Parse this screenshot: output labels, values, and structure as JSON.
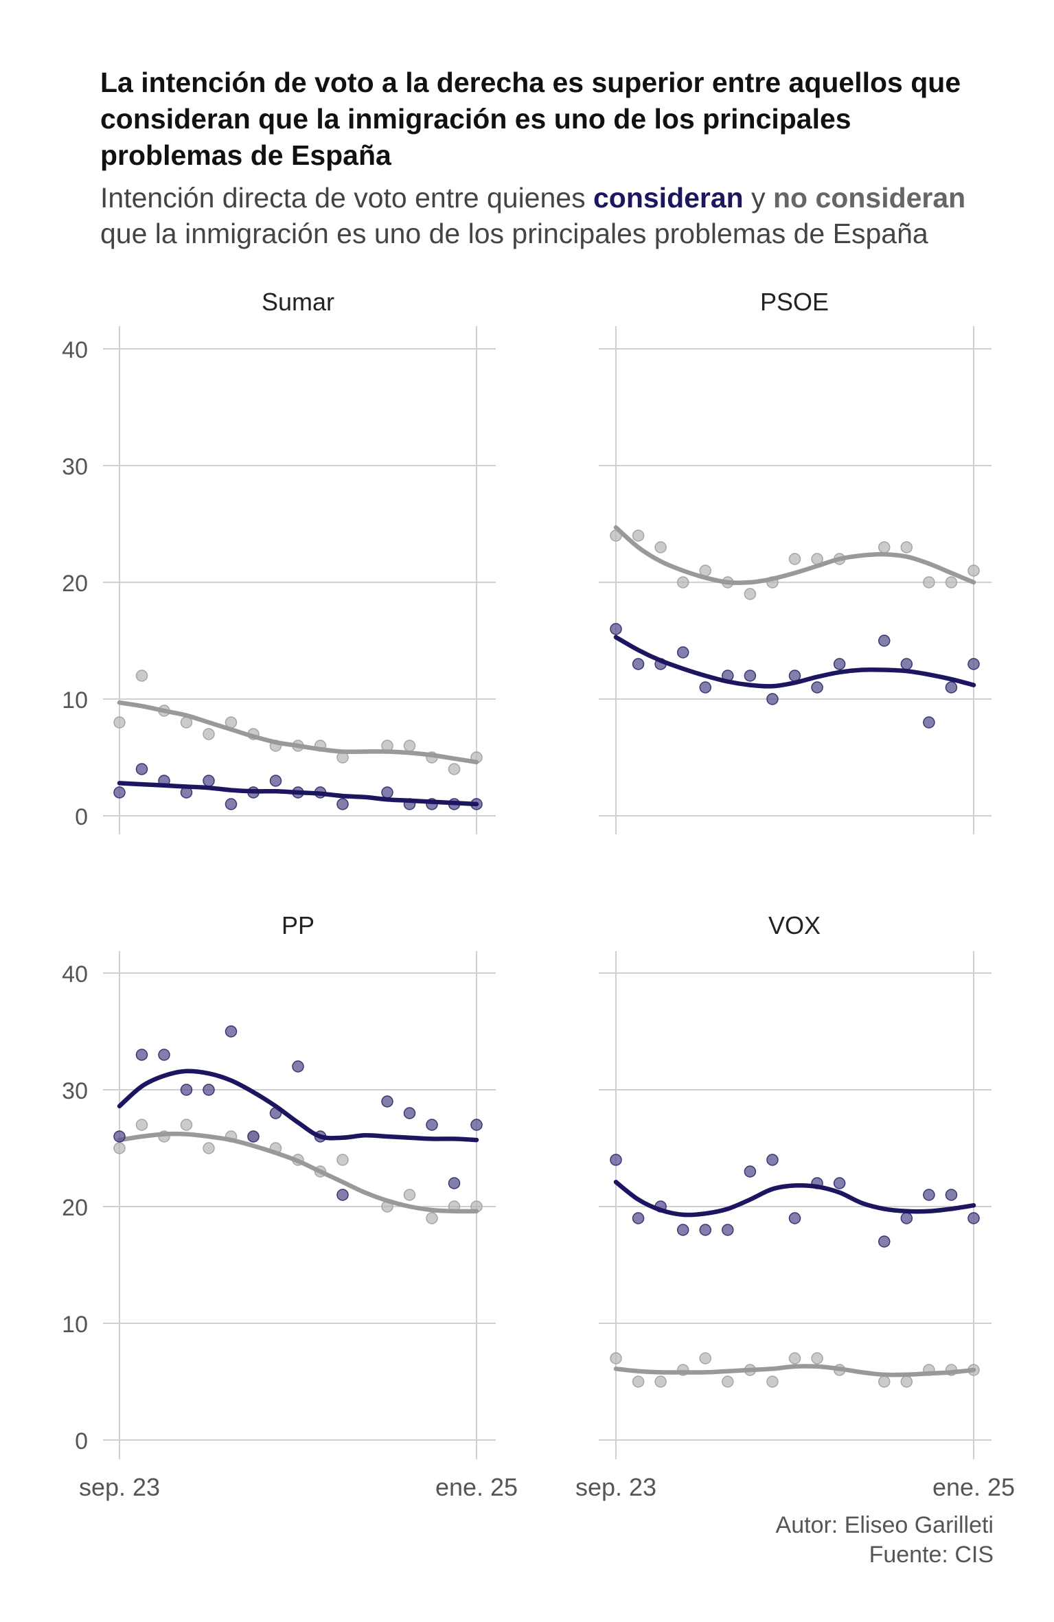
{
  "title": "La intención de voto a la derecha es superior entre aquellos que consideran que la inmigración es uno de los principales problemas de España",
  "subtitle": {
    "prefix": "Intención directa de voto entre quienes ",
    "highlight_a": "consideran",
    "middle": " y ",
    "highlight_b": "no consideran",
    "suffix": " que la inmigración es uno de los principales problemas de España"
  },
  "caption": {
    "author": "Autor: Eliseo Garilleti",
    "source": "Fuente: CIS"
  },
  "colors": {
    "consideran": "#1c1660",
    "no_consideran": "#999999",
    "grid": "#d0d0d0"
  },
  "chart_data": [
    {
      "type": "scatter",
      "title": "Sumar",
      "x_ticks": [
        "sep. 23",
        "ene. 25"
      ],
      "y_ticks": [
        0,
        10,
        20,
        30,
        40
      ],
      "ylim": [
        0,
        40
      ],
      "series": [
        {
          "name": "consideran",
          "values": [
            2,
            4,
            3,
            2,
            3,
            1,
            2,
            3,
            2,
            2,
            1,
            null,
            2,
            1,
            1,
            1,
            1
          ],
          "trend": [
            2.8,
            2.7,
            2.6,
            2.5,
            2.4,
            2.2,
            2.1,
            2.1,
            2.0,
            1.9,
            1.7,
            1.6,
            1.4,
            1.3,
            1.2,
            1.1,
            1.0
          ]
        },
        {
          "name": "no consideran",
          "values": [
            8,
            12,
            9,
            8,
            7,
            8,
            7,
            6,
            6,
            6,
            5,
            null,
            6,
            6,
            5,
            4,
            5
          ],
          "trend": [
            9.7,
            9.4,
            9.0,
            8.6,
            8.0,
            7.4,
            6.8,
            6.3,
            6.0,
            5.7,
            5.5,
            5.5,
            5.5,
            5.4,
            5.2,
            4.9,
            4.6
          ]
        }
      ]
    },
    {
      "type": "scatter",
      "title": "PSOE",
      "x_ticks": [
        "sep. 23",
        "ene. 25"
      ],
      "y_ticks": [
        0,
        10,
        20,
        30,
        40
      ],
      "ylim": [
        0,
        40
      ],
      "series": [
        {
          "name": "consideran",
          "values": [
            16,
            13,
            13,
            14,
            11,
            12,
            12,
            10,
            12,
            11,
            13,
            null,
            15,
            13,
            8,
            11,
            13
          ],
          "trend": [
            15.3,
            14.2,
            13.3,
            12.6,
            12.0,
            11.5,
            11.2,
            11.1,
            11.4,
            11.9,
            12.3,
            12.5,
            12.5,
            12.4,
            12.1,
            11.7,
            11.2
          ]
        },
        {
          "name": "no consideran",
          "values": [
            24,
            24,
            23,
            20,
            21,
            20,
            19,
            20,
            22,
            22,
            22,
            null,
            23,
            23,
            20,
            20,
            21
          ],
          "trend": [
            24.7,
            23.0,
            21.8,
            21.0,
            20.4,
            20.0,
            20.0,
            20.3,
            20.8,
            21.4,
            22.0,
            22.3,
            22.4,
            22.2,
            21.6,
            20.8,
            20.0
          ]
        }
      ]
    },
    {
      "type": "scatter",
      "title": "PP",
      "x_ticks": [
        "sep. 23",
        "ene. 25"
      ],
      "y_ticks": [
        0,
        10,
        20,
        30,
        40
      ],
      "ylim": [
        0,
        40
      ],
      "series": [
        {
          "name": "consideran",
          "values": [
            26,
            33,
            33,
            30,
            30,
            35,
            26,
            28,
            32,
            26,
            21,
            null,
            29,
            28,
            27,
            22,
            27
          ],
          "trend": [
            28.6,
            30.3,
            31.2,
            31.6,
            31.4,
            30.8,
            29.8,
            28.6,
            27.2,
            26.0,
            25.9,
            26.1,
            26.0,
            25.9,
            25.8,
            25.8,
            25.7
          ]
        },
        {
          "name": "no consideran",
          "values": [
            25,
            27,
            26,
            27,
            25,
            26,
            26,
            25,
            24,
            23,
            24,
            null,
            20,
            21,
            19,
            20,
            20
          ],
          "trend": [
            25.7,
            26.0,
            26.2,
            26.2,
            26.0,
            25.7,
            25.2,
            24.6,
            23.9,
            23.0,
            22.1,
            21.2,
            20.5,
            20.0,
            19.7,
            19.6,
            19.6
          ]
        }
      ]
    },
    {
      "type": "scatter",
      "title": "VOX",
      "x_ticks": [
        "sep. 23",
        "ene. 25"
      ],
      "y_ticks": [
        0,
        10,
        20,
        30,
        40
      ],
      "ylim": [
        0,
        40
      ],
      "series": [
        {
          "name": "consideran",
          "values": [
            24,
            19,
            20,
            18,
            18,
            18,
            23,
            24,
            19,
            22,
            22,
            null,
            17,
            19,
            21,
            21,
            19
          ],
          "trend": [
            22.1,
            20.6,
            19.7,
            19.3,
            19.4,
            19.8,
            20.6,
            21.5,
            21.8,
            21.7,
            21.2,
            20.3,
            19.8,
            19.6,
            19.6,
            19.8,
            20.1
          ]
        },
        {
          "name": "no consideran",
          "values": [
            7,
            5,
            5,
            6,
            7,
            5,
            6,
            5,
            7,
            7,
            6,
            null,
            5,
            5,
            6,
            6,
            6
          ],
          "trend": [
            6.1,
            5.9,
            5.8,
            5.8,
            5.8,
            5.9,
            6.0,
            6.1,
            6.3,
            6.3,
            6.1,
            5.8,
            5.6,
            5.6,
            5.7,
            5.8,
            6.0
          ]
        }
      ]
    }
  ]
}
